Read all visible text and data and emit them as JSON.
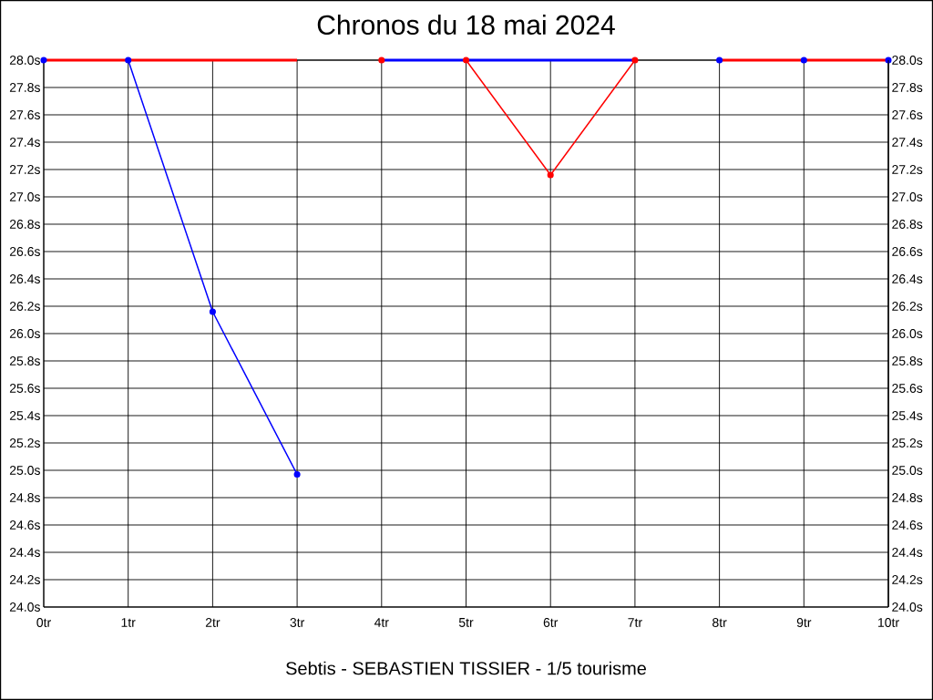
{
  "chart_data": {
    "type": "line",
    "title": "Chronos du 18 mai 2024",
    "xlabel": "Sebtis - SEBASTIEN TISSIER - 1/5 tourisme",
    "xlim": [
      0,
      10
    ],
    "xticks": [
      {
        "value": 0,
        "label": "0tr"
      },
      {
        "value": 1,
        "label": "1tr"
      },
      {
        "value": 2,
        "label": "2tr"
      },
      {
        "value": 3,
        "label": "3tr"
      },
      {
        "value": 4,
        "label": "4tr"
      },
      {
        "value": 5,
        "label": "5tr"
      },
      {
        "value": 6,
        "label": "6tr"
      },
      {
        "value": 7,
        "label": "7tr"
      },
      {
        "value": 8,
        "label": "8tr"
      },
      {
        "value": 9,
        "label": "9tr"
      },
      {
        "value": 10,
        "label": "10tr"
      }
    ],
    "ylim": [
      24,
      28
    ],
    "yticks": [
      {
        "value": 24.0,
        "label": "24.0s"
      },
      {
        "value": 24.2,
        "label": "24.2s"
      },
      {
        "value": 24.4,
        "label": "24.4s"
      },
      {
        "value": 24.6,
        "label": "24.6s"
      },
      {
        "value": 24.8,
        "label": "24.8s"
      },
      {
        "value": 25.0,
        "label": "25.0s"
      },
      {
        "value": 25.2,
        "label": "25.2s"
      },
      {
        "value": 25.4,
        "label": "25.4s"
      },
      {
        "value": 25.6,
        "label": "25.6s"
      },
      {
        "value": 25.8,
        "label": "25.8s"
      },
      {
        "value": 26.0,
        "label": "26.0s"
      },
      {
        "value": 26.2,
        "label": "26.2s"
      },
      {
        "value": 26.4,
        "label": "26.4s"
      },
      {
        "value": 26.6,
        "label": "26.6s"
      },
      {
        "value": 26.8,
        "label": "26.8s"
      },
      {
        "value": 27.0,
        "label": "27.0s"
      },
      {
        "value": 27.2,
        "label": "27.2s"
      },
      {
        "value": 27.4,
        "label": "27.4s"
      },
      {
        "value": 27.6,
        "label": "27.6s"
      },
      {
        "value": 27.8,
        "label": "27.8s"
      },
      {
        "value": 28.0,
        "label": "28.0s"
      }
    ],
    "y2lim": [
      24,
      28
    ],
    "y2ticks": [
      {
        "value": 24.0,
        "label": "24.0s"
      },
      {
        "value": 24.2,
        "label": "24.2s"
      },
      {
        "value": 24.4,
        "label": "24.4s"
      },
      {
        "value": 24.6,
        "label": "24.6s"
      },
      {
        "value": 24.8,
        "label": "24.8s"
      },
      {
        "value": 25.0,
        "label": "25.0s"
      },
      {
        "value": 25.2,
        "label": "25.2s"
      },
      {
        "value": 25.4,
        "label": "25.4s"
      },
      {
        "value": 25.6,
        "label": "25.6s"
      },
      {
        "value": 25.8,
        "label": "25.8s"
      },
      {
        "value": 26.0,
        "label": "26.0s"
      },
      {
        "value": 26.2,
        "label": "26.2s"
      },
      {
        "value": 26.4,
        "label": "26.4s"
      },
      {
        "value": 26.6,
        "label": "26.6s"
      },
      {
        "value": 26.8,
        "label": "26.8s"
      },
      {
        "value": 27.0,
        "label": "27.0s"
      },
      {
        "value": 27.2,
        "label": "27.2s"
      },
      {
        "value": 27.4,
        "label": "27.4s"
      },
      {
        "value": 27.6,
        "label": "27.6s"
      },
      {
        "value": 27.8,
        "label": "27.8s"
      },
      {
        "value": 28.0,
        "label": "28.0s"
      }
    ],
    "grid": true,
    "marker": "circle",
    "series": [
      {
        "color": "#0000ff",
        "x": [
          0,
          1,
          2,
          3,
          4,
          5,
          6,
          7,
          8,
          9,
          10
        ],
        "values": [
          28.0,
          28.0,
          26.16,
          24.97,
          null,
          null,
          null,
          null,
          28.0,
          28.0,
          28.0
        ]
      },
      {
        "color": "#ff0000",
        "x": [
          4,
          5,
          6,
          7
        ],
        "values": [
          28.0,
          28.0,
          27.16,
          28.0
        ]
      },
      {
        "color": "#ff0000",
        "marker": "none",
        "x": [
          0,
          1,
          2,
          3,
          4,
          5,
          6,
          7,
          8,
          9,
          10
        ],
        "values": [
          28.0,
          28.0,
          28.0,
          28.0,
          null,
          null,
          null,
          null,
          28.0,
          28.0,
          28.0
        ]
      },
      {
        "color": "#0000ff",
        "marker": "none",
        "x": [
          4,
          5,
          6,
          7
        ],
        "values": [
          28.0,
          28.0,
          28.0,
          28.0
        ]
      }
    ]
  }
}
